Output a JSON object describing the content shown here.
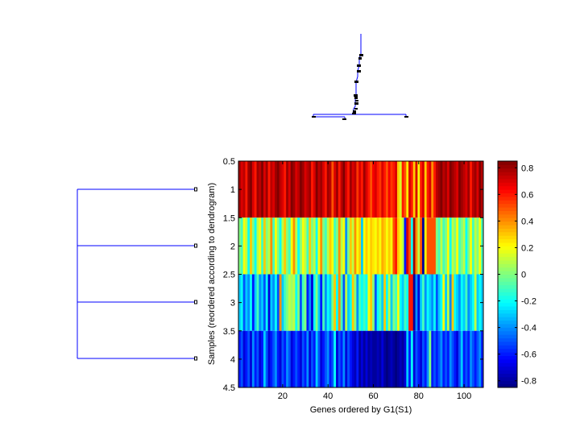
{
  "chart_data": {
    "type": "heatmap",
    "xlabel": "Genes ordered by G1(S1)",
    "ylabel": "Samples (reordered according to dendrogram)",
    "xlim": [
      0.5,
      108.5
    ],
    "ylim": [
      0.5,
      4.5
    ],
    "clim": [
      -0.85,
      0.85
    ],
    "colormap": "jet",
    "xticks": [
      20,
      40,
      60,
      80,
      100
    ],
    "xtick_labels": [
      "20",
      "40",
      "60",
      "80",
      "100"
    ],
    "yticks": [
      0.5,
      1,
      1.5,
      2,
      2.5,
      3,
      3.5,
      4,
      4.5
    ],
    "ytick_labels": [
      "0.5",
      "1",
      "1.5",
      "2",
      "2.5",
      "3",
      "3.5",
      "4",
      "4.5"
    ],
    "colorbar_ticks": [
      0.8,
      0.6,
      0.4,
      0.2,
      0,
      -0.2,
      -0.4,
      -0.6,
      -0.8
    ],
    "colorbar_labels": [
      "0.8",
      "0.6",
      "0.4",
      "0.2",
      "0",
      "-0.2",
      "-0.4",
      "-0.6",
      "-0.8"
    ],
    "rows": [
      [
        0.8,
        0.7,
        0.75,
        0.6,
        0.8,
        0.85,
        0.7,
        0.6,
        0.8,
        0.75,
        0.85,
        0.7,
        0.8,
        0.6,
        0.75,
        0.7,
        0.8,
        0.85,
        0.75,
        0.7,
        0.6,
        0.8,
        0.7,
        0.85,
        0.8,
        0.7,
        0.75,
        0.85,
        0.8,
        0.7,
        0.75,
        0.8,
        0.6,
        0.7,
        0.85,
        0.75,
        0.8,
        0.7,
        0.6,
        0.8,
        0.75,
        0.5,
        0.7,
        0.8,
        0.6,
        0.75,
        0.85,
        0.7,
        0.6,
        0.8,
        0.7,
        0.75,
        0.55,
        0.7,
        0.6,
        0.8,
        0.7,
        0.6,
        0.5,
        0.65,
        0.7,
        0.6,
        0.55,
        0.7,
        0.6,
        0.5,
        0.65,
        0.55,
        0.6,
        0.7,
        0.3,
        0.15,
        0.6,
        0.5,
        0.25,
        0.7,
        0.6,
        0.3,
        0.7,
        0.2,
        0.6,
        0.7,
        0.3,
        0.6,
        0.7,
        0.4,
        0.6,
        0.75,
        0.8,
        0.85,
        0.75,
        0.8,
        0.7,
        0.85,
        0.8,
        0.75,
        0.7,
        0.85,
        0.8,
        0.75,
        0.7,
        0.8,
        0.6,
        0.75,
        0.8,
        0.7,
        0.85,
        0.75
      ],
      [
        0.0,
        -0.1,
        0.2,
        0.1,
        -0.2,
        0.3,
        0.0,
        -0.2,
        0.1,
        0.2,
        -0.1,
        0.3,
        0.0,
        0.1,
        0.4,
        -0.1,
        0.2,
        0.0,
        -0.2,
        0.1,
        0.3,
        0.0,
        -0.1,
        0.2,
        0.4,
        0.1,
        -0.2,
        0.0,
        0.2,
        0.1,
        -0.1,
        0.3,
        0.0,
        0.1,
        -0.2,
        0.2,
        0.4,
        0.0,
        -0.1,
        0.1,
        0.3,
        0.2,
        -0.1,
        0.0,
        0.4,
        0.1,
        0.2,
        -0.4,
        0.0,
        0.3,
        0.1,
        0.4,
        0.2,
        0.3,
        -0.3,
        0.2,
        0.3,
        0.2,
        0.3,
        0.25,
        0.2,
        0.3,
        0.2,
        0.35,
        0.3,
        0.2,
        0.3,
        0.2,
        0.5,
        0.6,
        0.3,
        0.2,
        0.1,
        -0.6,
        0.7,
        0.5,
        -0.2,
        0.8,
        0.4,
        0.1,
        0.5,
        -0.8,
        0.2,
        0.5,
        0.5,
        0.5,
        0.5,
        0.0,
        -0.1,
        0.1,
        -0.1,
        0.0,
        0.2,
        -0.2,
        0.1,
        0.0,
        0.2,
        -0.1,
        0.0,
        0.1,
        -0.2,
        0.0,
        0.2,
        -0.1,
        0.1,
        0.0,
        0.2,
        -0.1
      ],
      [
        -0.3,
        -0.2,
        -0.5,
        -0.3,
        -0.4,
        -0.2,
        -0.6,
        -0.3,
        -0.1,
        -0.4,
        -0.3,
        -0.5,
        -0.2,
        -0.7,
        -0.3,
        -0.4,
        -0.2,
        -0.5,
        0.4,
        -0.3,
        -0.1,
        0.0,
        0.1,
        0.05,
        0.1,
        -0.2,
        0.0,
        -0.5,
        -0.1,
        0.0,
        -0.6,
        -0.4,
        -0.7,
        -0.2,
        0.0,
        -0.3,
        -0.6,
        -0.1,
        -0.4,
        -0.2,
        -0.3,
        0.0,
        0.3,
        -0.2,
        0.4,
        -0.1,
        -0.5,
        0.1,
        -0.3,
        -0.2,
        0.3,
        0.0,
        -0.4,
        -0.1,
        -0.2,
        -0.1,
        -0.2,
        0.2,
        0.3,
        0.0,
        -0.5,
        -0.2,
        -0.1,
        -0.3,
        0.3,
        -0.2,
        0.1,
        -0.3,
        0.0,
        -0.1,
        0.2,
        -0.2,
        -0.3,
        -0.1,
        -0.2,
        0.6,
        0.6,
        -0.8,
        -0.4,
        -0.7,
        -0.3,
        -0.1,
        -0.4,
        -0.2,
        -0.3,
        -0.4,
        -0.2,
        -0.5,
        -0.3,
        -0.2,
        0.2,
        -0.3,
        0.1,
        -0.4,
        0.3,
        -0.2,
        -0.3,
        -0.4,
        -0.2,
        -0.3,
        -0.1,
        -0.4,
        -0.3,
        -0.2,
        0.1,
        -0.3,
        -0.2,
        -0.3
      ],
      [
        -0.6,
        -0.5,
        -0.7,
        -0.6,
        -0.5,
        -0.7,
        -0.4,
        -0.6,
        -0.5,
        -0.7,
        -0.6,
        -0.3,
        -0.5,
        -0.7,
        -0.6,
        -0.5,
        -0.4,
        -0.6,
        -0.7,
        -0.5,
        -0.6,
        -0.4,
        -0.5,
        -0.7,
        -0.6,
        -0.5,
        -0.6,
        -0.7,
        -0.5,
        -0.6,
        -0.4,
        -0.7,
        -0.5,
        -0.6,
        -0.3,
        -0.5,
        -0.7,
        -0.6,
        -0.5,
        -0.4,
        -0.6,
        -0.5,
        -0.2,
        -0.7,
        -0.5,
        -0.6,
        -0.4,
        -0.7,
        -0.5,
        -0.6,
        -0.7,
        -0.75,
        -0.6,
        -0.8,
        -0.7,
        -0.8,
        -0.7,
        -0.8,
        -0.75,
        -0.8,
        -0.8,
        -0.75,
        -0.8,
        -0.7,
        -0.8,
        -0.85,
        -0.8,
        -0.75,
        -0.8,
        -0.85,
        -0.8,
        -0.75,
        -0.8,
        -0.7,
        -0.3,
        -0.6,
        -0.2,
        -0.7,
        -0.5,
        -0.6,
        -0.7,
        -0.5,
        -0.6,
        -0.4,
        0.0,
        -0.6,
        -0.5,
        -0.6,
        -0.5,
        -0.4,
        -0.6,
        -0.5,
        -0.6,
        -0.4,
        -0.5,
        -0.6,
        -0.7,
        -0.5,
        -0.3,
        -0.6,
        -0.5,
        -0.6,
        -0.4,
        -0.5,
        -0.6,
        -0.5,
        -0.4,
        -0.6
      ]
    ],
    "dendrogram_color": "#0000ff"
  }
}
